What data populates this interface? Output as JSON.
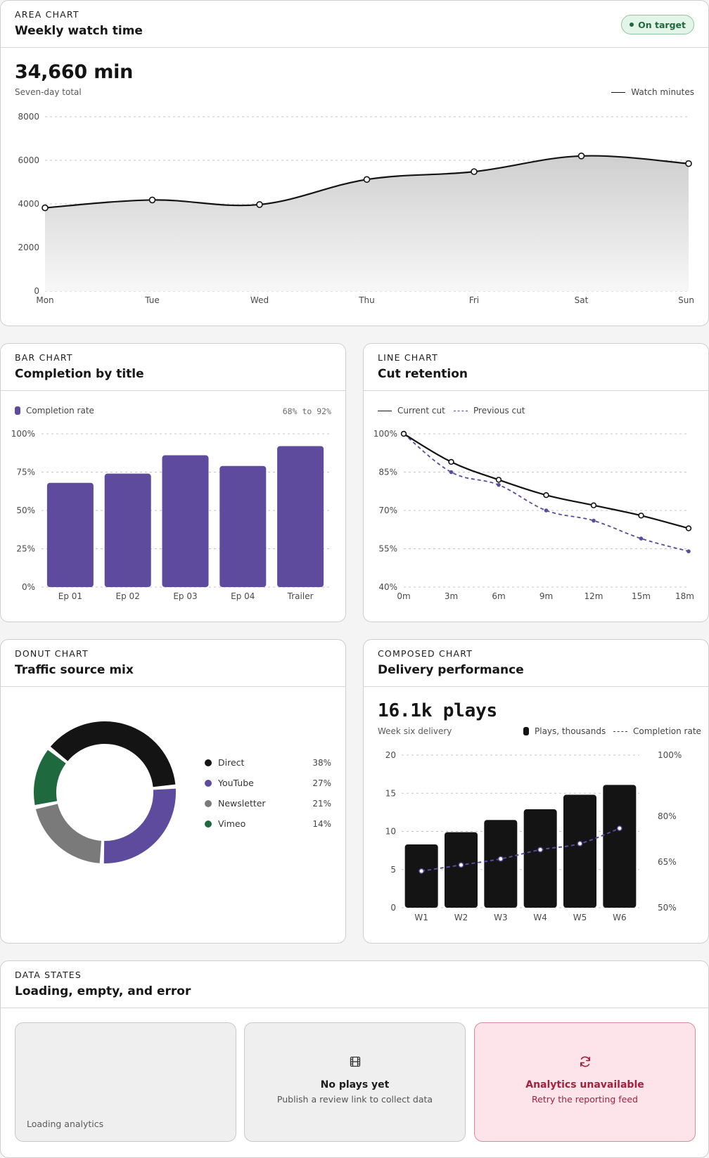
{
  "area": {
    "eyebrow": "AREA CHART",
    "title": "Weekly watch time",
    "badge": "On target",
    "total": "34,660 min",
    "total_caption": "Seven-day total",
    "legend": "Watch minutes"
  },
  "bar": {
    "eyebrow": "BAR CHART",
    "title": "Completion by title",
    "legend": "Completion rate",
    "range": "68% to 92%"
  },
  "line": {
    "eyebrow": "LINE CHART",
    "title": "Cut retention",
    "legend_current": "Current cut",
    "legend_previous": "Previous cut"
  },
  "donut": {
    "eyebrow": "DONUT CHART",
    "title": "Traffic source mix"
  },
  "composed": {
    "eyebrow": "COMPOSED CHART",
    "title": "Delivery performance",
    "total": "16.1k plays",
    "total_caption": "Week six delivery",
    "legend_bars": "Plays, thousands",
    "legend_line": "Completion rate"
  },
  "states": {
    "eyebrow": "DATA STATES",
    "title": "Loading, empty, and error",
    "loading_label": "Loading analytics",
    "empty_title": "No plays yet",
    "empty_sub": "Publish a review link to collect data",
    "empty_icon": "film-icon",
    "error_title": "Analytics unavailable",
    "error_sub": "Retry the reporting feed",
    "error_icon": "refresh-icon"
  },
  "colors": {
    "accent_purple": "#5f4b9e",
    "ink": "#141414",
    "success": "#1e6a3e",
    "error": "#a3213d"
  },
  "chart_data": [
    {
      "type": "area",
      "title": "Weekly watch time",
      "categories": [
        "Mon",
        "Tue",
        "Wed",
        "Thu",
        "Fri",
        "Sat",
        "Sun"
      ],
      "series": [
        {
          "name": "Watch minutes",
          "values": [
            3820,
            4180,
            3970,
            5120,
            5480,
            6200,
            5850
          ]
        }
      ],
      "ylim": [
        0,
        8000
      ],
      "yticks": [
        0,
        2000,
        4000,
        6000,
        8000
      ],
      "grid": true,
      "legend": "top-right"
    },
    {
      "type": "bar",
      "title": "Completion by title",
      "categories": [
        "Ep 01",
        "Ep 02",
        "Ep 03",
        "Ep 04",
        "Trailer"
      ],
      "series": [
        {
          "name": "Completion rate",
          "values": [
            68,
            74,
            86,
            79,
            92
          ]
        }
      ],
      "ylim": [
        0,
        100
      ],
      "yticks": [
        "0%",
        "25%",
        "50%",
        "75%",
        "100%"
      ],
      "grid": true,
      "legend": "top-left"
    },
    {
      "type": "line",
      "title": "Cut retention",
      "x": [
        "0m",
        "3m",
        "6m",
        "9m",
        "12m",
        "15m",
        "18m"
      ],
      "series": [
        {
          "name": "Current cut",
          "values": [
            100,
            89,
            82,
            76,
            72,
            68,
            63
          ]
        },
        {
          "name": "Previous cut",
          "values": [
            100,
            85,
            80,
            70,
            66,
            59,
            54
          ]
        }
      ],
      "ylim": [
        40,
        100
      ],
      "yticks": [
        "40%",
        "55%",
        "70%",
        "85%",
        "100%"
      ],
      "grid": true,
      "legend": "top-left"
    },
    {
      "type": "pie",
      "title": "Traffic source mix",
      "categories": [
        "Direct",
        "YouTube",
        "Newsletter",
        "Vimeo"
      ],
      "values": [
        38,
        27,
        21,
        14
      ],
      "labels": [
        "38%",
        "27%",
        "21%",
        "14%"
      ],
      "colors": [
        "#141414",
        "#5f4b9e",
        "#7a7a7a",
        "#1e6a3e"
      ],
      "donut": true,
      "legend": "right"
    },
    {
      "type": "bar",
      "title": "Delivery performance",
      "categories": [
        "W1",
        "W2",
        "W3",
        "W4",
        "W5",
        "W6"
      ],
      "series": [
        {
          "name": "Plays, thousands",
          "type": "bar",
          "values": [
            8.3,
            9.9,
            11.5,
            12.9,
            14.8,
            16.1
          ],
          "axis": "left"
        },
        {
          "name": "Completion rate",
          "type": "line",
          "values": [
            62,
            64,
            66,
            69,
            71,
            76
          ],
          "axis": "right"
        }
      ],
      "ylim": [
        0,
        20
      ],
      "yticks": [
        "0",
        "5",
        "10",
        "15",
        "20"
      ],
      "y2lim": [
        50,
        100
      ],
      "y2ticks": [
        "50%",
        "65%",
        "80%",
        "100%"
      ],
      "grid": true,
      "legend": "top-right"
    }
  ]
}
